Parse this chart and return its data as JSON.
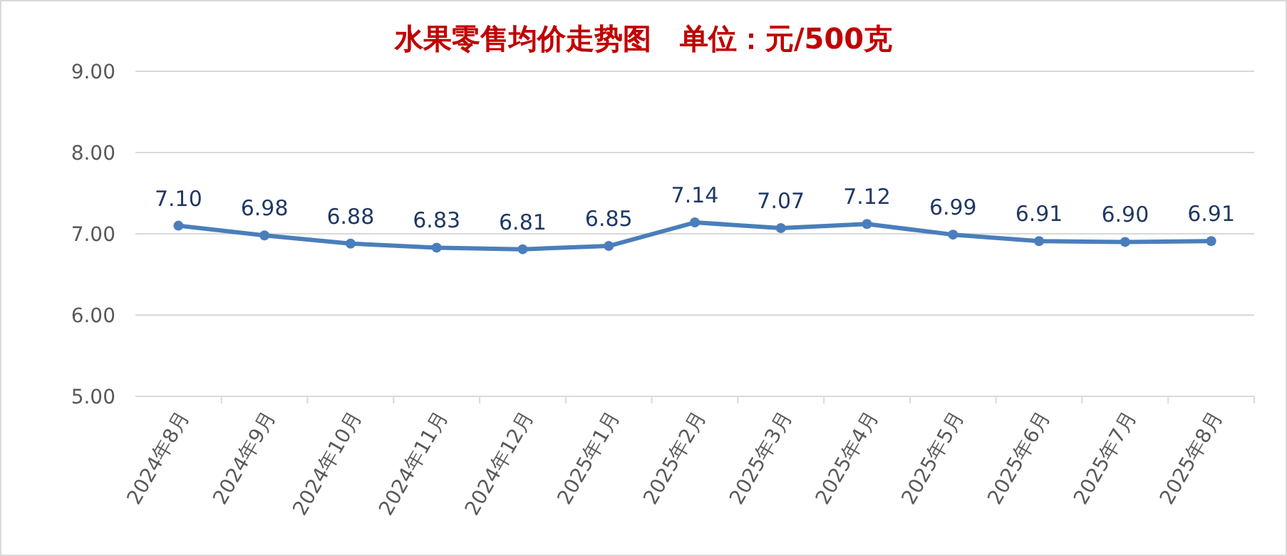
{
  "chart_data": {
    "type": "line",
    "title": "水果零售均价走势图　单位：元/500克",
    "categories": [
      "2024年8月",
      "2024年9月",
      "2024年10月",
      "2024年11月",
      "2024年12月",
      "2025年1月",
      "2025年2月",
      "2025年3月",
      "2025年4月",
      "2025年5月",
      "2025年6月",
      "2025年7月",
      "2025年8月"
    ],
    "values": [
      7.1,
      6.98,
      6.88,
      6.83,
      6.81,
      6.85,
      7.14,
      7.07,
      7.12,
      6.99,
      6.91,
      6.9,
      6.91
    ],
    "value_labels": [
      "7.10",
      "6.98",
      "6.88",
      "6.83",
      "6.81",
      "6.85",
      "7.14",
      "7.07",
      "7.12",
      "6.99",
      "6.91",
      "6.90",
      "6.91"
    ],
    "color": "#4a7ebb",
    "ylim": [
      5,
      9
    ],
    "yticks": [
      {
        "value": 5,
        "label": "5.00"
      },
      {
        "value": 6,
        "label": "6.00"
      },
      {
        "value": 7,
        "label": "7.00"
      },
      {
        "value": 8,
        "label": "8.00"
      },
      {
        "value": 9,
        "label": "9.00"
      }
    ],
    "grid": "y",
    "marker": "circle"
  }
}
